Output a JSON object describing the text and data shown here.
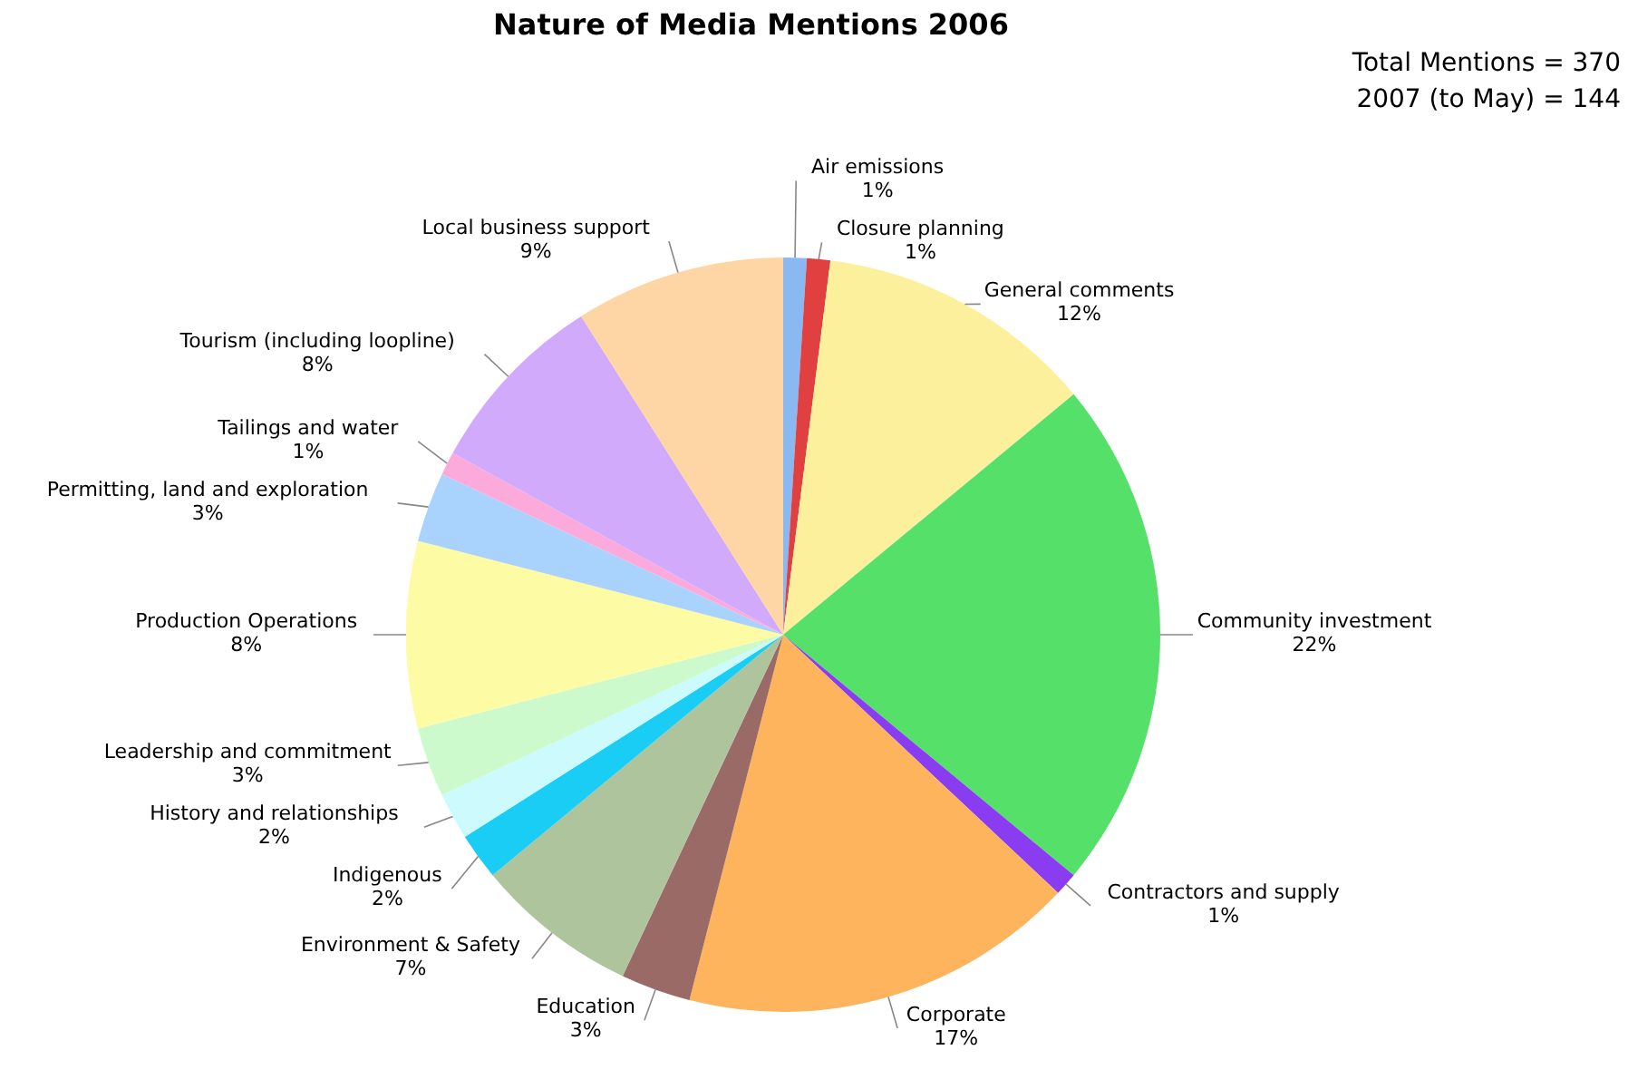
{
  "chart_data": {
    "type": "pie",
    "title": "Nature of Media Mentions 2006",
    "categories": [
      "Air emissions",
      "Closure planning",
      "General comments",
      "Community investment",
      "Contractors and supply",
      "Corporate",
      "Education",
      "Environment & Safety",
      "Indigenous",
      "History and relationships",
      "Leadership and commitment",
      "Production Operations",
      "Permitting, land and exploration",
      "Tailings and water",
      "Tourism (including loopline)",
      "Local business support"
    ],
    "values": [
      1,
      1,
      12,
      22,
      1,
      17,
      3,
      7,
      2,
      2,
      3,
      8,
      3,
      1,
      8,
      9
    ],
    "value_labels": [
      "1%",
      "1%",
      "12%",
      "22%",
      "1%",
      "17%",
      "3%",
      "7%",
      "2%",
      "2%",
      "3%",
      "8%",
      "3%",
      "1%",
      "8%",
      "9%"
    ],
    "colors": [
      "#8ab8f0",
      "#e04040",
      "#fdf09c",
      "#55e06a",
      "#8a3cf0",
      "#fdb45c",
      "#9a6a66",
      "#adc49c",
      "#19cdf5",
      "#cdfafd",
      "#cdfacd",
      "#fdfca4",
      "#a9d2fc",
      "#fcaadc",
      "#d2aafc",
      "#fed6a6"
    ],
    "annotations": [
      "Total Mentions = 370",
      "2007 (to May) = 144"
    ]
  }
}
